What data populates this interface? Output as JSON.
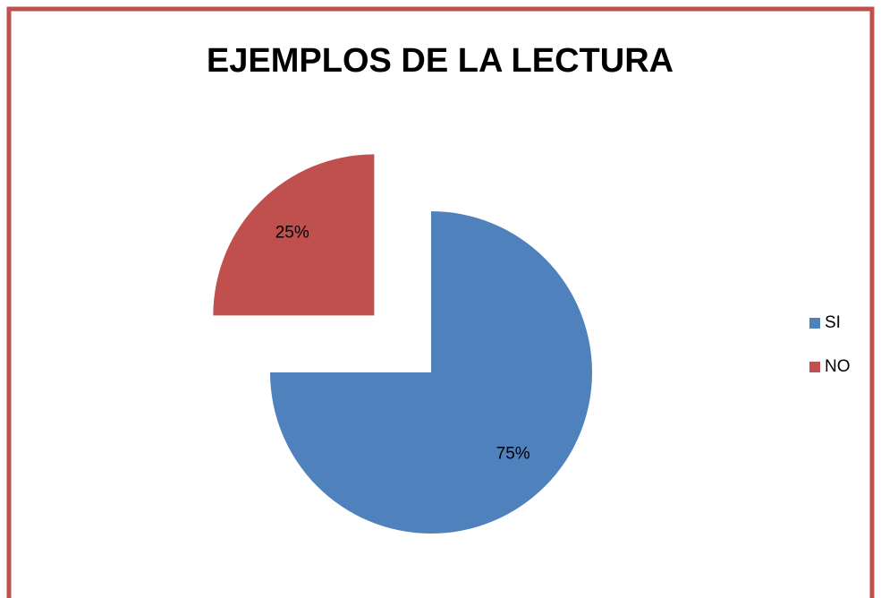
{
  "chart_data": {
    "type": "pie",
    "title": "EJEMPLOS DE LA LECTURA",
    "categories": [
      "SI",
      "NO"
    ],
    "values": [
      75,
      25
    ],
    "value_labels": [
      "75%",
      "25%"
    ],
    "colors": [
      "#4f81bd",
      "#c0504d"
    ],
    "explode": [
      false,
      true
    ],
    "legend": "right"
  }
}
